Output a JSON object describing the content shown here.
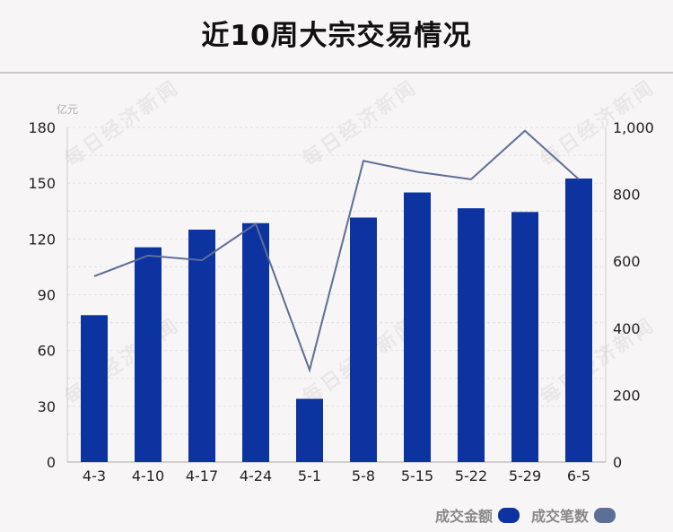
{
  "title": "近10周大宗交易情况",
  "watermark": "每日经济新闻",
  "legend": {
    "amount_label": "成交金额",
    "count_label": "成交笔数"
  },
  "colors": {
    "bar": "#0c33a0",
    "line": "#5c6f96",
    "legend_amount": "#0c33a0",
    "legend_count": "#5c6f96"
  },
  "chart_data": {
    "type": "bar",
    "title": "近10周大宗交易情况",
    "categories": [
      "4-3",
      "4-10",
      "4-17",
      "4-24",
      "5-1",
      "5-8",
      "5-15",
      "5-22",
      "5-29",
      "6-5"
    ],
    "series": [
      {
        "name": "成交金额",
        "type": "bar",
        "axis": "left",
        "values": [
          79,
          115.5,
          125,
          128.5,
          34,
          131.5,
          145,
          136.5,
          134.5,
          152.5
        ]
      },
      {
        "name": "成交笔数",
        "type": "line",
        "axis": "right",
        "values": [
          555,
          617,
          603,
          712,
          275,
          900,
          867,
          845,
          990,
          845
        ]
      }
    ],
    "y_left": {
      "unit": "亿元",
      "ylim": [
        0,
        180
      ],
      "ticks": [
        "0",
        "30",
        "60",
        "90",
        "120",
        "150",
        "180"
      ]
    },
    "y_right": {
      "ylim": [
        0,
        1000
      ],
      "ticks": [
        "0",
        "200",
        "400",
        "600",
        "800",
        "1,000"
      ]
    },
    "grid": true,
    "legend_position": "bottom-right"
  }
}
